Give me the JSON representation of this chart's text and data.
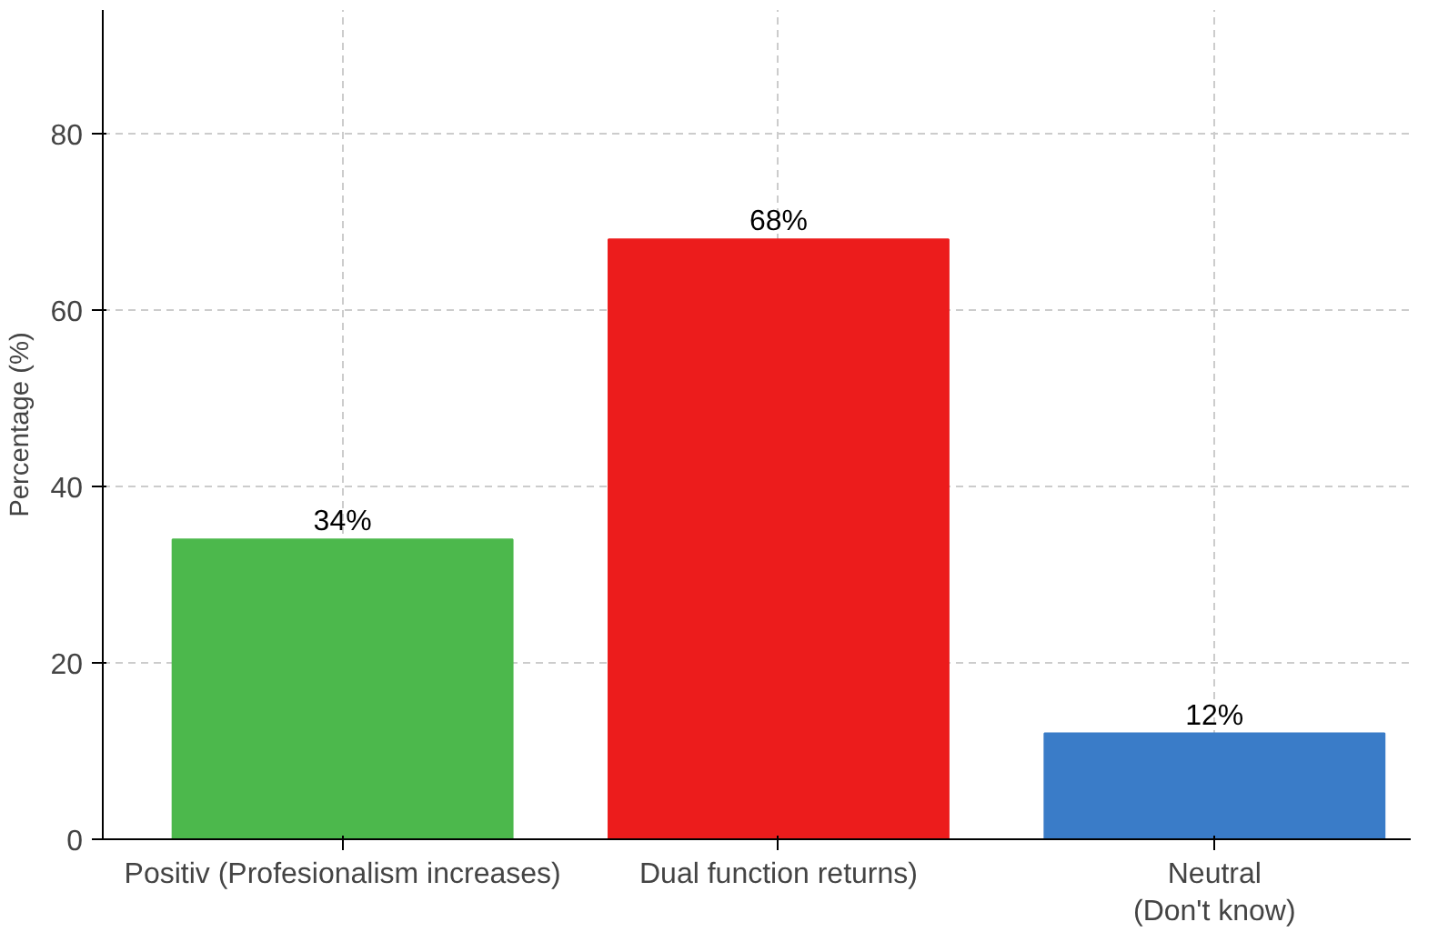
{
  "chart_data": {
    "type": "bar",
    "ylabel": "Percentage (%)",
    "categories": [
      "Positiv (Profesionalism increases)",
      "Dual function returns)",
      "Neutral\n(Don't know)"
    ],
    "values": [
      34,
      68,
      12
    ],
    "colors": [
      "#4cb84c",
      "#ec1c1c",
      "#3a7cc8"
    ],
    "value_labels": [
      "34%",
      "68%",
      "12%"
    ],
    "ylim": [
      0,
      94
    ],
    "yticks": [
      0,
      20,
      40,
      60,
      80
    ],
    "grid": true
  }
}
